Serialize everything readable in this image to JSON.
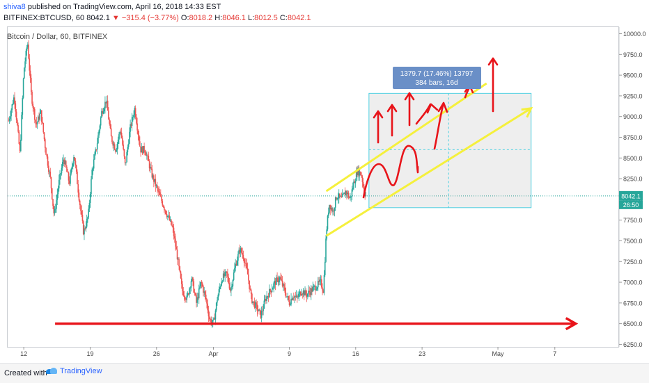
{
  "header": {
    "author": "shiva8",
    "published_text": "published on TradingView.com, April 16, 2018 14:33 EST",
    "symbol": "BITFINEX:BTCUSD, 60",
    "last": "8042.1",
    "change": "−315.4 (−3.77%)",
    "o_label": "O:",
    "o_val": "8018.2",
    "h_label": "H:",
    "h_val": "8046.1",
    "l_label": "L:",
    "l_val": "8012.5",
    "c_label": "C:",
    "c_val": "8042.1"
  },
  "chart_title": "Bitcoin / Dollar, 60, BITFINEX",
  "footer": {
    "created": "Created with",
    "brand": "TradingView"
  },
  "colors": {
    "up": "#26a69a",
    "down": "#ef5350",
    "drawing_red": "#e8141a",
    "yellow": "#f5f03c",
    "box_border": "#4dd0e1",
    "measure_bg": "#6a8fc7"
  },
  "chart_data": {
    "type": "candlestick",
    "title": "Bitcoin / Dollar, 60, BITFINEX",
    "x_tick_labels": [
      {
        "label": "12",
        "day": 12
      },
      {
        "label": "19",
        "day": 19
      },
      {
        "label": "26",
        "day": 26
      },
      {
        "label": "Apr",
        "day": 32
      },
      {
        "label": "9",
        "day": 40
      },
      {
        "label": "16",
        "day": 47
      },
      {
        "label": "23",
        "day": 54
      },
      {
        "label": "May",
        "day": 62
      },
      {
        "label": "7",
        "day": 68
      }
    ],
    "xlim": [
      10.3,
      74.7
    ],
    "ylim": [
      6220,
      10080
    ],
    "y_ticks": [
      6250.0,
      6500.0,
      6750.0,
      7000.0,
      7250.0,
      7500.0,
      7750.0,
      8000.0,
      8250.0,
      8500.0,
      8750.0,
      9000.0,
      9250.0,
      9500.0,
      9750.0,
      10000.0
    ],
    "price_path": [
      [
        10.4,
        8950
      ],
      [
        11.0,
        9250
      ],
      [
        11.6,
        8550
      ],
      [
        12.0,
        9550
      ],
      [
        12.4,
        9900
      ],
      [
        12.8,
        9250
      ],
      [
        13.3,
        8900
      ],
      [
        13.8,
        9050
      ],
      [
        14.3,
        8600
      ],
      [
        14.8,
        8250
      ],
      [
        15.2,
        7800
      ],
      [
        15.7,
        8200
      ],
      [
        16.2,
        8500
      ],
      [
        16.8,
        8200
      ],
      [
        17.3,
        8550
      ],
      [
        17.8,
        8050
      ],
      [
        18.3,
        7600
      ],
      [
        18.8,
        7800
      ],
      [
        19.2,
        8350
      ],
      [
        19.7,
        8650
      ],
      [
        20.2,
        9050
      ],
      [
        20.7,
        9200
      ],
      [
        21.2,
        8750
      ],
      [
        21.7,
        8600
      ],
      [
        22.2,
        8850
      ],
      [
        22.7,
        8400
      ],
      [
        23.2,
        8850
      ],
      [
        23.7,
        9100
      ],
      [
        24.3,
        8600
      ],
      [
        24.8,
        8600
      ],
      [
        25.5,
        8300
      ],
      [
        26.3,
        8050
      ],
      [
        27.0,
        7850
      ],
      [
        27.7,
        7650
      ],
      [
        28.2,
        7300
      ],
      [
        28.7,
        6900
      ],
      [
        29.2,
        6800
      ],
      [
        29.7,
        7050
      ],
      [
        30.2,
        6750
      ],
      [
        30.7,
        7000
      ],
      [
        31.2,
        6800
      ],
      [
        31.6,
        6550
      ],
      [
        32.0,
        6500
      ],
      [
        32.4,
        6800
      ],
      [
        32.9,
        7050
      ],
      [
        33.4,
        7100
      ],
      [
        33.8,
        6900
      ],
      [
        34.3,
        7200
      ],
      [
        34.8,
        7400
      ],
      [
        35.2,
        7300
      ],
      [
        35.6,
        7100
      ],
      [
        36.0,
        6800
      ],
      [
        36.5,
        6700
      ],
      [
        37.0,
        6600
      ],
      [
        37.5,
        6800
      ],
      [
        38.0,
        6900
      ],
      [
        38.5,
        7000
      ],
      [
        39.0,
        7050
      ],
      [
        39.5,
        6900
      ],
      [
        40.0,
        6750
      ],
      [
        40.4,
        6850
      ],
      [
        40.8,
        6800
      ],
      [
        41.3,
        6900
      ],
      [
        41.8,
        6850
      ],
      [
        42.3,
        6900
      ],
      [
        42.8,
        6950
      ],
      [
        43.3,
        7000
      ],
      [
        43.6,
        6900
      ],
      [
        43.9,
        7600
      ],
      [
        44.2,
        7950
      ],
      [
        44.6,
        7850
      ],
      [
        45.0,
        8050
      ],
      [
        45.5,
        8000
      ],
      [
        46.0,
        8100
      ],
      [
        46.4,
        8000
      ],
      [
        46.8,
        8200
      ],
      [
        47.2,
        8350
      ],
      [
        47.6,
        8300
      ],
      [
        47.9,
        8100
      ],
      [
        48.1,
        8042
      ]
    ],
    "last_price": "8042.1",
    "countdown": "26:50",
    "current_line": 8042.1,
    "support_arrow": {
      "x0": 15.3,
      "x1": 70.2,
      "y": 6500
    },
    "channel_upper": {
      "from": [
        43.9,
        8100
      ],
      "to": [
        60.8,
        9400
      ]
    },
    "channel_lower": {
      "from": [
        43.9,
        7560
      ],
      "to": [
        65.5,
        9100
      ]
    },
    "projection_box": {
      "x0": 48.4,
      "x1": 65.5,
      "y0": 7900,
      "y1": 9280,
      "mid_y": 8600,
      "mid_x": 56.8
    },
    "measure_label": {
      "line1": "1379.7 (17.46%) 13797",
      "line2": "384 bars, 16d"
    }
  }
}
